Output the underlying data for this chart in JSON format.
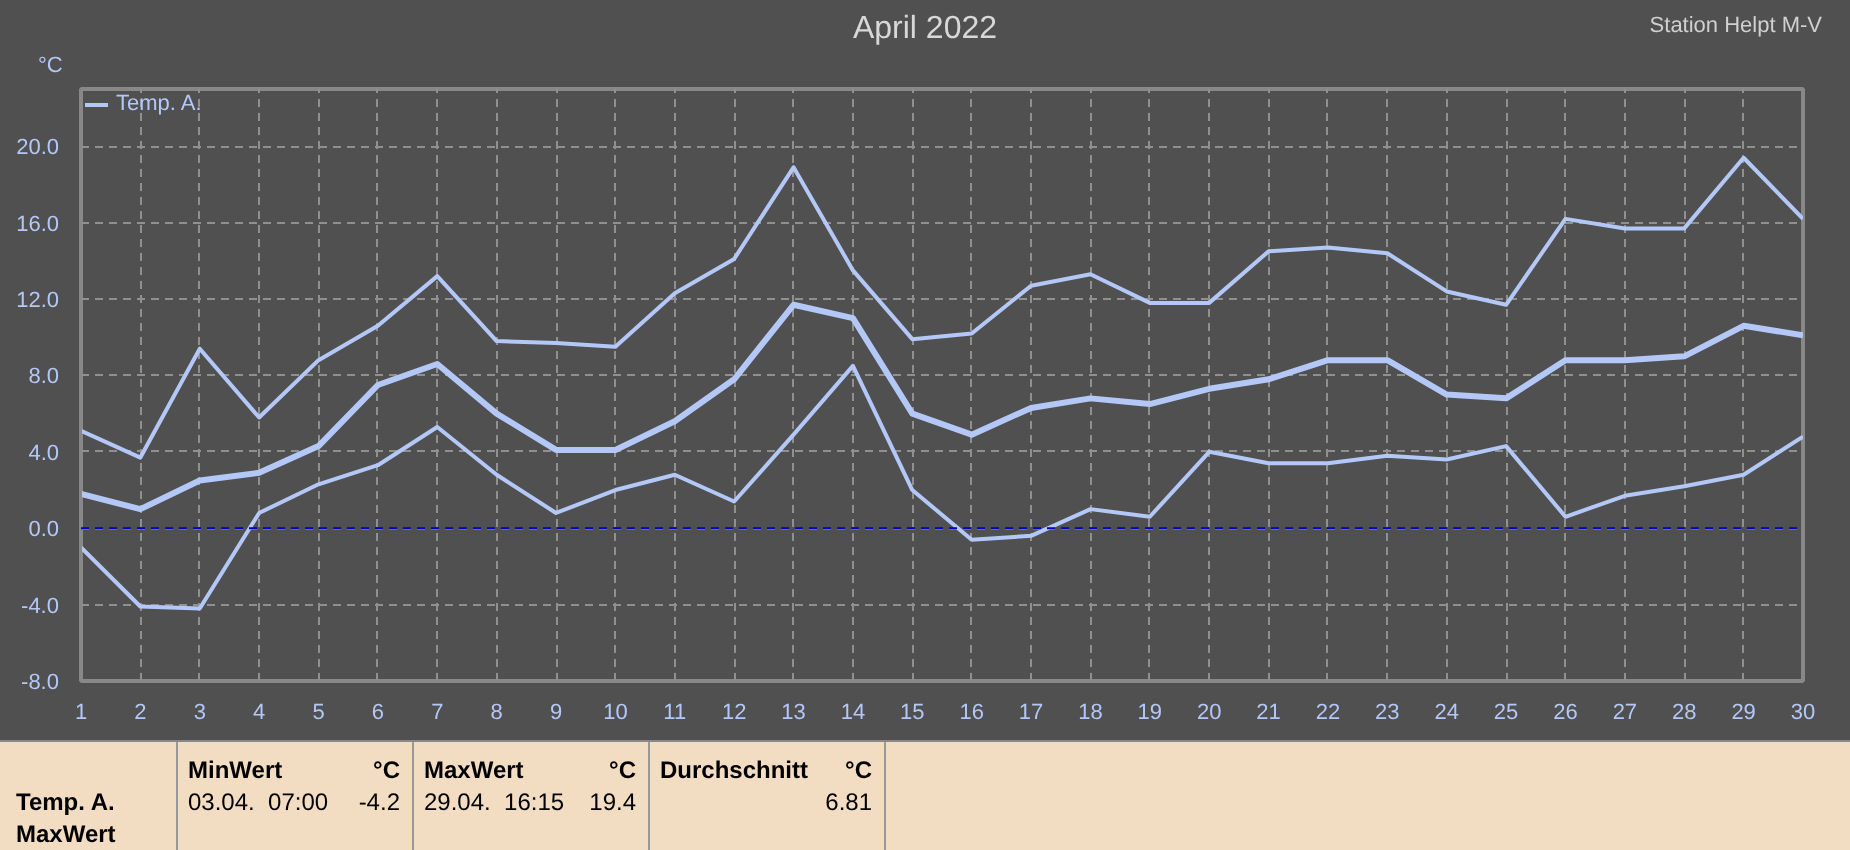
{
  "chart_data": {
    "type": "line",
    "title": "April 2022",
    "ylabel": "°C",
    "x": [
      1,
      2,
      3,
      4,
      5,
      6,
      7,
      8,
      9,
      10,
      11,
      12,
      13,
      14,
      15,
      16,
      17,
      18,
      19,
      20,
      21,
      22,
      23,
      24,
      25,
      26,
      27,
      28,
      29,
      30
    ],
    "series": [
      {
        "name": "Temp. A.",
        "color": "#b4c8f8",
        "values": [
          5.1,
          3.7,
          9.4,
          5.8,
          8.8,
          10.6,
          13.2,
          9.8,
          9.7,
          9.5,
          12.3,
          14.1,
          18.9,
          13.5,
          9.9,
          10.2,
          12.7,
          13.3,
          11.8,
          11.8,
          14.5,
          14.7,
          14.4,
          12.4,
          11.7,
          16.2,
          15.7,
          15.7,
          19.4,
          16.2
        ]
      },
      {
        "color": "#b4c8f8",
        "values": [
          1.8,
          1.0,
          2.5,
          2.9,
          4.3,
          7.5,
          8.6,
          6.0,
          4.1,
          4.1,
          5.6,
          7.8,
          11.7,
          11.0,
          6.0,
          4.9,
          6.3,
          6.8,
          6.5,
          7.3,
          7.8,
          8.8,
          8.8,
          7.0,
          6.8,
          8.8,
          8.8,
          9.0,
          10.6,
          10.1
        ]
      },
      {
        "color": "#b4c8f8",
        "values": [
          -1.0,
          -4.1,
          -4.2,
          0.8,
          2.3,
          3.3,
          5.3,
          2.8,
          0.8,
          2.0,
          2.8,
          1.4,
          4.9,
          8.5,
          2.0,
          -0.6,
          -0.4,
          1.0,
          0.6,
          4.0,
          3.4,
          3.4,
          3.8,
          3.6,
          4.3,
          0.6,
          1.7,
          2.2,
          2.8,
          4.8
        ]
      }
    ],
    "xlim": [
      1,
      30
    ],
    "xticks": [
      1,
      2,
      3,
      4,
      5,
      6,
      7,
      8,
      9,
      10,
      11,
      12,
      13,
      14,
      15,
      16,
      17,
      18,
      19,
      20,
      21,
      22,
      23,
      24,
      25,
      26,
      27,
      28,
      29,
      30
    ],
    "ylim": [
      -8,
      23
    ],
    "yticks": [
      {
        "value": -8,
        "label": "-8.0"
      },
      {
        "value": -4,
        "label": "-4.0"
      },
      {
        "value": 0,
        "label": "0.0"
      },
      {
        "value": 4,
        "label": "4.0"
      },
      {
        "value": 8,
        "label": "8.0"
      },
      {
        "value": 12,
        "label": "12.0"
      },
      {
        "value": 16,
        "label": "16.0"
      },
      {
        "value": 20,
        "label": "20.0"
      }
    ],
    "ref_lines": [
      {
        "axis": "y",
        "value": 0,
        "color": "#0000c0",
        "line_style": "dashed"
      }
    ],
    "grid": true,
    "legend": "top left",
    "marker": "none",
    "line_style": "solid",
    "annotations": [
      "Station Helpt M-V",
      "Temp. A.",
      "MaxWert",
      "MinWert",
      "°C",
      "03.04.  07:00",
      "-4.2",
      "MaxWert",
      "°C",
      "29.04.  16:15",
      "19.4",
      "Durchschnitt",
      "°C",
      "6.81"
    ]
  }
}
